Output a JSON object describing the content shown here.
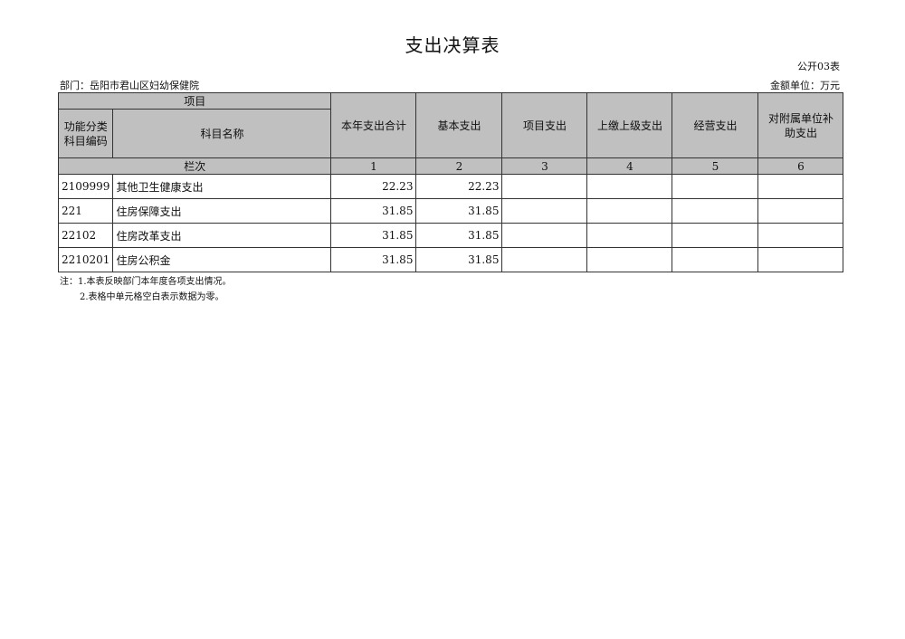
{
  "title": "支出决算表",
  "table_code": "公开03表",
  "department": "部门：岳阳市君山区妇幼保健院",
  "unit": "金额单位：万元",
  "header": {
    "project": "项目",
    "code_col": "功能分类科目编码",
    "name_col": "科目名称",
    "columns": [
      "本年支出合计",
      "基本支出",
      "项目支出",
      "上缴上级支出",
      "经营支出",
      "对附属单位补助支出"
    ],
    "row_index_label": "栏次",
    "column_numbers": [
      "1",
      "2",
      "3",
      "4",
      "5",
      "6"
    ]
  },
  "rows": [
    {
      "code": "2109999",
      "name": "其他卫生健康支出",
      "values": [
        "22.23",
        "22.23",
        "",
        "",
        "",
        ""
      ]
    },
    {
      "code": "221",
      "name": "住房保障支出",
      "values": [
        "31.85",
        "31.85",
        "",
        "",
        "",
        ""
      ]
    },
    {
      "code": "22102",
      "name": "住房改革支出",
      "values": [
        "31.85",
        "31.85",
        "",
        "",
        "",
        ""
      ]
    },
    {
      "code": "2210201",
      "name": "住房公积金",
      "values": [
        "31.85",
        "31.85",
        "",
        "",
        "",
        ""
      ]
    }
  ],
  "notes": [
    "注：1.本表反映部门本年度各项支出情况。",
    "2.表格中单元格空白表示数据为零。"
  ]
}
